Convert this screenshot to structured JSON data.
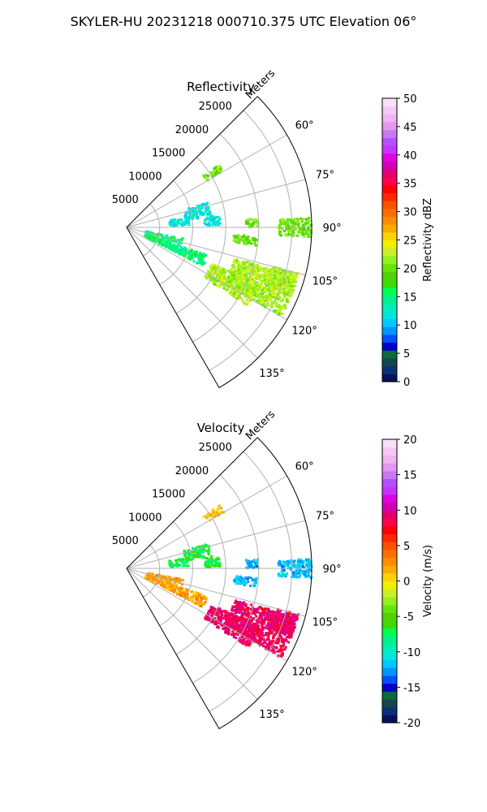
{
  "figure": {
    "title": "SKYLER-HU  20231218  000710.375 UTC Elevation 06°"
  },
  "chart_data": [
    {
      "type": "heatmap",
      "title": "Reflectivity",
      "radial_label": "Meters",
      "radial_ticks": [
        "5000",
        "10000",
        "15000",
        "20000",
        "25000"
      ],
      "azimuth_ticks": [
        "60°",
        "75°",
        "90°",
        "105°",
        "120°",
        "135°"
      ],
      "azimuth_range_deg": [
        45,
        150
      ],
      "range_max_m": 28000,
      "grid": true,
      "colorbar": {
        "label": "Reflectivity dBZ",
        "min": 0,
        "max": 50,
        "ticks": [
          "0",
          "5",
          "10",
          "15",
          "20",
          "25",
          "30",
          "35",
          "40",
          "45",
          "50"
        ],
        "colors": [
          "#06125a",
          "#0b2f78",
          "#13484a",
          "#0c6a3c",
          "#0000c8",
          "#0050ff",
          "#0096ff",
          "#00c8ff",
          "#00e6dc",
          "#00f0b4",
          "#00f08c",
          "#00ff50",
          "#3cdc00",
          "#50d200",
          "#64e60a",
          "#96f01e",
          "#c8f028",
          "#f0f000",
          "#ffd200",
          "#ffaa00",
          "#ff8c00",
          "#ff6e00",
          "#ff5000",
          "#ff2800",
          "#ff0000",
          "#ff004b",
          "#e1006e",
          "#d200b4",
          "#e100e1",
          "#c832ff",
          "#b450ff",
          "#c878f0",
          "#e696f0",
          "#f0b4f0",
          "#f5c8f5",
          "#fae1fa"
        ]
      },
      "echo_regions": [
        {
          "name": "band-near-60deg",
          "value_dbz": 20
        },
        {
          "name": "patches-75-90deg",
          "value_dbz": 12
        },
        {
          "name": "cells-90deg",
          "value_dbz": 20
        },
        {
          "name": "band-near-120deg",
          "value_dbz": 15
        },
        {
          "name": "main-cell-110-125deg",
          "value_dbz": 22
        }
      ]
    },
    {
      "type": "heatmap",
      "title": "Velocity",
      "radial_label": "Meters",
      "radial_ticks": [
        "5000",
        "10000",
        "15000",
        "20000",
        "25000"
      ],
      "azimuth_ticks": [
        "60°",
        "75°",
        "90°",
        "105°",
        "120°",
        "135°"
      ],
      "azimuth_range_deg": [
        45,
        150
      ],
      "range_max_m": 28000,
      "grid": true,
      "colorbar": {
        "label": "Velocity (m/s)",
        "min": -20,
        "max": 20,
        "ticks": [
          "-20",
          "-15",
          "-10",
          "-5",
          "0",
          "5",
          "10",
          "15",
          "20"
        ],
        "colors": [
          "#06125a",
          "#0b2f78",
          "#13484a",
          "#0c6a3c",
          "#0000c8",
          "#0050ff",
          "#0096ff",
          "#00c8ff",
          "#00e6dc",
          "#00f0b4",
          "#00f08c",
          "#00ff50",
          "#3cdc00",
          "#50d200",
          "#64e60a",
          "#96f01e",
          "#c8f028",
          "#f0f000",
          "#ffd200",
          "#ffaa00",
          "#ff8c00",
          "#ff6e00",
          "#ff5000",
          "#ff2800",
          "#ff0000",
          "#ff004b",
          "#e1006e",
          "#d200b4",
          "#e100e1",
          "#c832ff",
          "#b450ff",
          "#c878f0",
          "#e696f0",
          "#f0b4f0",
          "#f5c8f5",
          "#fae1fa"
        ]
      },
      "echo_regions": [
        {
          "name": "band-near-60deg",
          "value_ms": 1
        },
        {
          "name": "patches-75-90deg",
          "value_ms": -7
        },
        {
          "name": "cells-90deg",
          "value_ms": -12
        },
        {
          "name": "band-near-120deg",
          "value_ms": 2
        },
        {
          "name": "main-cell-110-125deg",
          "value_ms": 9
        }
      ]
    }
  ]
}
